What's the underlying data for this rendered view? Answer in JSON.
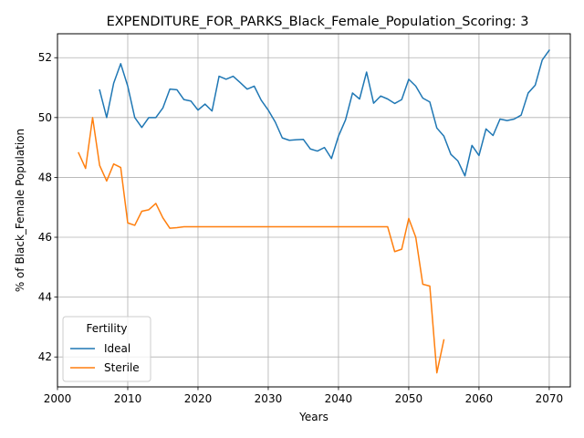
{
  "chart_data": {
    "type": "line",
    "title": "EXPENDITURE_FOR_PARKS_Black_Female_Population_Scoring: 3",
    "xlabel": "Years",
    "ylabel": "% of Black_Female Population",
    "xlim": [
      2000,
      2073
    ],
    "ylim": [
      41.0,
      52.8
    ],
    "xticks": [
      2000,
      2010,
      2020,
      2030,
      2040,
      2050,
      2060,
      2070
    ],
    "yticks": [
      42,
      44,
      46,
      48,
      50,
      52
    ],
    "grid": true,
    "legend": {
      "title": "Fertility",
      "position": "lower-left"
    },
    "series": [
      {
        "name": "Ideal",
        "color": "#1f77b4",
        "x": [
          2006,
          2007,
          2008,
          2009,
          2010,
          2011,
          2012,
          2013,
          2014,
          2015,
          2016,
          2017,
          2018,
          2019,
          2020,
          2021,
          2022,
          2023,
          2024,
          2025,
          2026,
          2027,
          2028,
          2029,
          2030,
          2031,
          2032,
          2033,
          2034,
          2035,
          2036,
          2037,
          2038,
          2039,
          2040,
          2041,
          2042,
          2043,
          2044,
          2045,
          2046,
          2047,
          2048,
          2049,
          2050,
          2051,
          2052,
          2053,
          2054,
          2055,
          2056,
          2057,
          2058,
          2059,
          2060,
          2061,
          2062,
          2063,
          2064,
          2065,
          2066,
          2067,
          2068,
          2069,
          2070
        ],
        "y": [
          50.92,
          50.0,
          51.15,
          51.8,
          51.05,
          50.0,
          49.67,
          50.0,
          50.0,
          50.32,
          50.95,
          50.93,
          50.6,
          50.55,
          50.25,
          50.45,
          50.22,
          51.38,
          51.28,
          51.38,
          51.17,
          50.95,
          51.05,
          50.58,
          50.25,
          49.85,
          49.32,
          49.24,
          49.26,
          49.27,
          48.95,
          48.88,
          49.0,
          48.63,
          49.38,
          49.92,
          50.82,
          50.62,
          51.52,
          50.48,
          50.72,
          50.62,
          50.47,
          50.6,
          51.28,
          51.05,
          50.65,
          50.52,
          49.65,
          49.38,
          48.77,
          48.55,
          48.05,
          49.07,
          48.73,
          49.62,
          49.4,
          49.95,
          49.9,
          49.95,
          50.08,
          50.82,
          51.08,
          51.92,
          52.25
        ]
      },
      {
        "name": "Sterile",
        "color": "#ff7f0e",
        "x": [
          2003,
          2004,
          2005,
          2006,
          2007,
          2008,
          2009,
          2010,
          2011,
          2012,
          2013,
          2014,
          2015,
          2016,
          2017,
          2018,
          2019,
          2020,
          2021,
          2022,
          2023,
          2024,
          2025,
          2026,
          2027,
          2028,
          2029,
          2030,
          2031,
          2032,
          2033,
          2034,
          2035,
          2036,
          2037,
          2038,
          2039,
          2040,
          2041,
          2042,
          2043,
          2044,
          2045,
          2046,
          2047,
          2048,
          2049,
          2050,
          2051,
          2052,
          2053,
          2054,
          2055
        ],
        "y": [
          48.82,
          48.3,
          50.0,
          48.4,
          47.88,
          48.45,
          48.33,
          46.48,
          46.4,
          46.87,
          46.92,
          47.13,
          46.65,
          46.3,
          46.32,
          46.35,
          46.35,
          46.35,
          46.35,
          46.35,
          46.35,
          46.35,
          46.35,
          46.35,
          46.35,
          46.35,
          46.35,
          46.35,
          46.35,
          46.35,
          46.35,
          46.35,
          46.35,
          46.35,
          46.35,
          46.35,
          46.35,
          46.35,
          46.35,
          46.35,
          46.35,
          46.35,
          46.35,
          46.35,
          46.35,
          45.52,
          45.6,
          46.63,
          46.0,
          44.43,
          44.37,
          41.47,
          42.57
        ]
      }
    ]
  }
}
